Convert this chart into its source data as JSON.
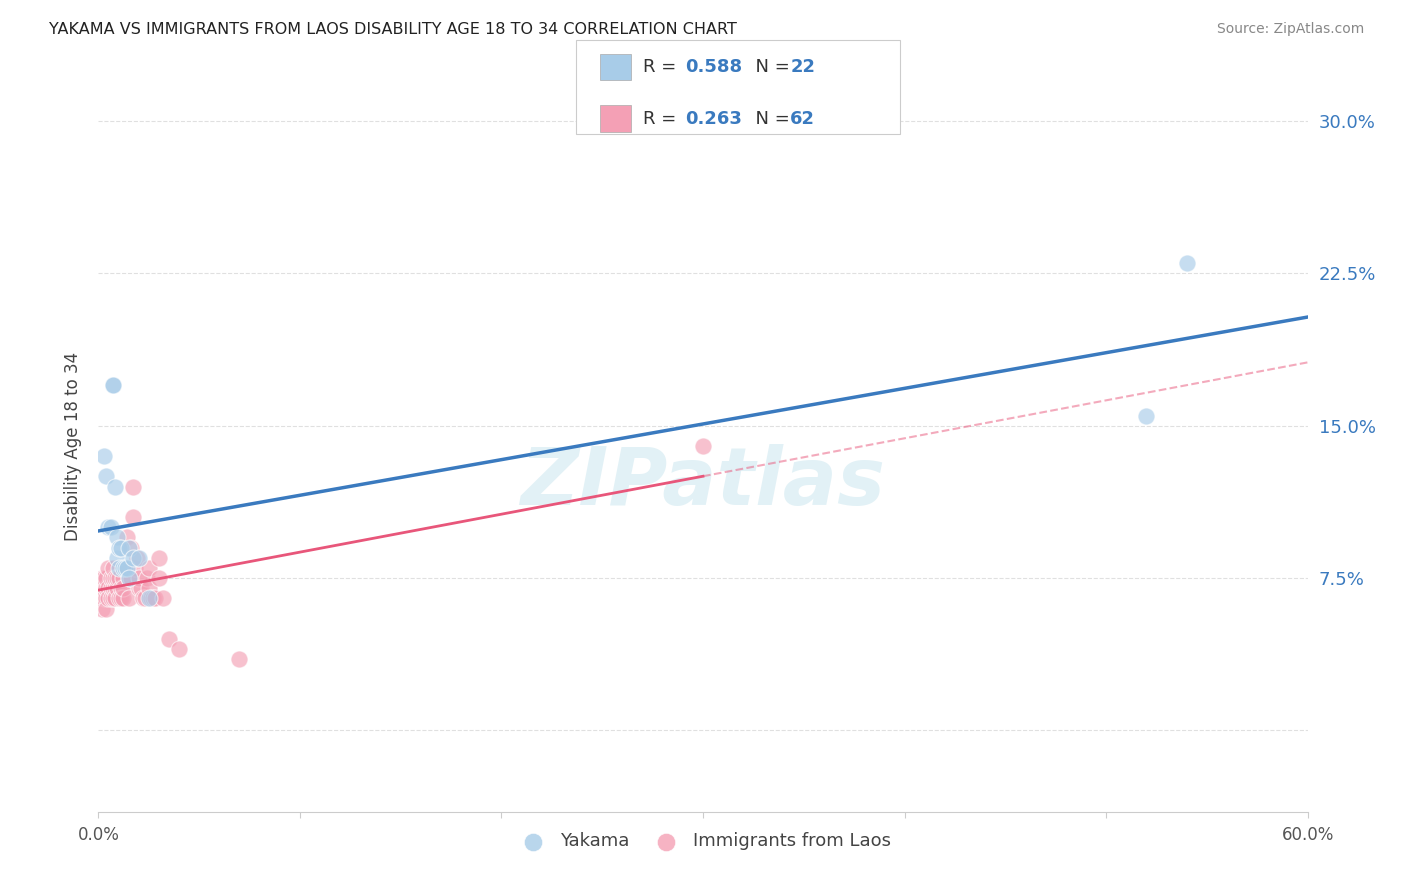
{
  "title": "YAKAMA VS IMMIGRANTS FROM LAOS DISABILITY AGE 18 TO 34 CORRELATION CHART",
  "source": "Source: ZipAtlas.com",
  "ylabel": "Disability Age 18 to 34",
  "x_min": 0.0,
  "x_max": 0.6,
  "y_min": -0.04,
  "y_max": 0.32,
  "x_ticks": [
    0.0,
    0.1,
    0.2,
    0.3,
    0.4,
    0.5,
    0.6
  ],
  "x_tick_labels": [
    "0.0%",
    "",
    "",
    "",
    "",
    "",
    "60.0%"
  ],
  "y_ticks": [
    0.0,
    0.075,
    0.15,
    0.225,
    0.3
  ],
  "y_tick_labels": [
    "",
    "7.5%",
    "15.0%",
    "22.5%",
    "30.0%"
  ],
  "legend_R_blue": "0.588",
  "legend_N_blue": "22",
  "legend_R_pink": "0.263",
  "legend_N_pink": "62",
  "blue_color": "#a8cce8",
  "pink_color": "#f4a0b5",
  "blue_line_color": "#3a7abf",
  "pink_line_color": "#e8567a",
  "watermark": "ZIPatlas",
  "legend_label_blue": "Yakama",
  "legend_label_pink": "Immigrants from Laos",
  "yakama_x": [
    0.003,
    0.004,
    0.005,
    0.006,
    0.007,
    0.007,
    0.008,
    0.009,
    0.009,
    0.01,
    0.01,
    0.011,
    0.012,
    0.013,
    0.014,
    0.015,
    0.015,
    0.017,
    0.02,
    0.025,
    0.52,
    0.54
  ],
  "yakama_y": [
    0.135,
    0.125,
    0.1,
    0.1,
    0.17,
    0.17,
    0.12,
    0.095,
    0.085,
    0.09,
    0.08,
    0.09,
    0.08,
    0.08,
    0.08,
    0.09,
    0.075,
    0.085,
    0.085,
    0.065,
    0.155,
    0.23
  ],
  "laos_x": [
    0.002,
    0.002,
    0.002,
    0.002,
    0.003,
    0.003,
    0.003,
    0.004,
    0.004,
    0.004,
    0.004,
    0.005,
    0.005,
    0.005,
    0.006,
    0.006,
    0.006,
    0.007,
    0.007,
    0.007,
    0.007,
    0.008,
    0.008,
    0.008,
    0.009,
    0.009,
    0.01,
    0.01,
    0.011,
    0.011,
    0.012,
    0.012,
    0.012,
    0.013,
    0.014,
    0.014,
    0.015,
    0.015,
    0.016,
    0.016,
    0.017,
    0.017,
    0.018,
    0.019,
    0.02,
    0.02,
    0.021,
    0.022,
    0.023,
    0.024,
    0.025,
    0.025,
    0.026,
    0.027,
    0.028,
    0.03,
    0.03,
    0.032,
    0.035,
    0.04,
    0.07,
    0.3
  ],
  "laos_y": [
    0.065,
    0.07,
    0.075,
    0.06,
    0.07,
    0.065,
    0.075,
    0.065,
    0.07,
    0.075,
    0.06,
    0.07,
    0.065,
    0.08,
    0.07,
    0.065,
    0.075,
    0.065,
    0.07,
    0.075,
    0.08,
    0.07,
    0.075,
    0.065,
    0.07,
    0.075,
    0.075,
    0.065,
    0.07,
    0.065,
    0.065,
    0.075,
    0.07,
    0.08,
    0.095,
    0.08,
    0.075,
    0.065,
    0.075,
    0.09,
    0.105,
    0.12,
    0.08,
    0.085,
    0.07,
    0.075,
    0.07,
    0.065,
    0.065,
    0.075,
    0.08,
    0.07,
    0.065,
    0.065,
    0.065,
    0.075,
    0.085,
    0.065,
    0.045,
    0.04,
    0.035,
    0.14
  ],
  "background_color": "#ffffff",
  "grid_color": "#e0e0e0"
}
